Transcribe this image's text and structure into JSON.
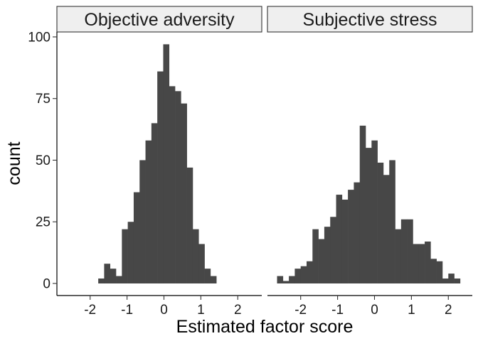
{
  "chart_data": {
    "type": "bar",
    "subtype": "histogram",
    "xlabel": "Estimated factor score",
    "ylabel": "count",
    "xlim": [
      -2.9,
      2.65
    ],
    "ylim": [
      -4.9,
      102
    ],
    "x_ticks": [
      -2,
      -1,
      0,
      1,
      2
    ],
    "x_tick_labels": [
      "-2",
      "-1",
      "0",
      "1",
      "2"
    ],
    "y_ticks": [
      0,
      25,
      50,
      75,
      100
    ],
    "y_tick_labels": [
      "0",
      "25",
      "50",
      "75",
      "100"
    ],
    "grid": false,
    "bar_color": "#474747",
    "panels": [
      {
        "label": "Objective adversity",
        "bin_width": 0.16,
        "bins": [
          {
            "x": -1.7,
            "count": 2
          },
          {
            "x": -1.54,
            "count": 8
          },
          {
            "x": -1.38,
            "count": 6
          },
          {
            "x": -1.22,
            "count": 3
          },
          {
            "x": -1.06,
            "count": 22
          },
          {
            "x": -0.9,
            "count": 25
          },
          {
            "x": -0.74,
            "count": 37
          },
          {
            "x": -0.58,
            "count": 50
          },
          {
            "x": -0.42,
            "count": 58
          },
          {
            "x": -0.26,
            "count": 65
          },
          {
            "x": -0.1,
            "count": 86
          },
          {
            "x": 0.06,
            "count": 97
          },
          {
            "x": 0.22,
            "count": 80
          },
          {
            "x": 0.38,
            "count": 78
          },
          {
            "x": 0.54,
            "count": 73
          },
          {
            "x": 0.7,
            "count": 47
          },
          {
            "x": 0.86,
            "count": 22
          },
          {
            "x": 1.02,
            "count": 16
          },
          {
            "x": 1.18,
            "count": 6
          },
          {
            "x": 1.34,
            "count": 3
          }
        ]
      },
      {
        "label": "Subjective stress",
        "bin_width": 0.16,
        "bins": [
          {
            "x": -2.56,
            "count": 3
          },
          {
            "x": -2.4,
            "count": 1
          },
          {
            "x": -2.24,
            "count": 3
          },
          {
            "x": -2.08,
            "count": 6
          },
          {
            "x": -1.92,
            "count": 7
          },
          {
            "x": -1.76,
            "count": 9
          },
          {
            "x": -1.6,
            "count": 22
          },
          {
            "x": -1.44,
            "count": 18
          },
          {
            "x": -1.28,
            "count": 23
          },
          {
            "x": -1.12,
            "count": 27
          },
          {
            "x": -0.96,
            "count": 36
          },
          {
            "x": -0.8,
            "count": 34
          },
          {
            "x": -0.64,
            "count": 38
          },
          {
            "x": -0.48,
            "count": 41
          },
          {
            "x": -0.32,
            "count": 64
          },
          {
            "x": -0.16,
            "count": 55
          },
          {
            "x": 0.0,
            "count": 58
          },
          {
            "x": 0.16,
            "count": 49
          },
          {
            "x": 0.32,
            "count": 44
          },
          {
            "x": 0.48,
            "count": 50
          },
          {
            "x": 0.64,
            "count": 22
          },
          {
            "x": 0.8,
            "count": 26
          },
          {
            "x": 0.96,
            "count": 26
          },
          {
            "x": 1.12,
            "count": 16
          },
          {
            "x": 1.28,
            "count": 16
          },
          {
            "x": 1.44,
            "count": 17
          },
          {
            "x": 1.6,
            "count": 10
          },
          {
            "x": 1.76,
            "count": 9
          },
          {
            "x": 1.92,
            "count": 2
          },
          {
            "x": 2.08,
            "count": 4
          },
          {
            "x": 2.24,
            "count": 2
          }
        ]
      }
    ]
  }
}
